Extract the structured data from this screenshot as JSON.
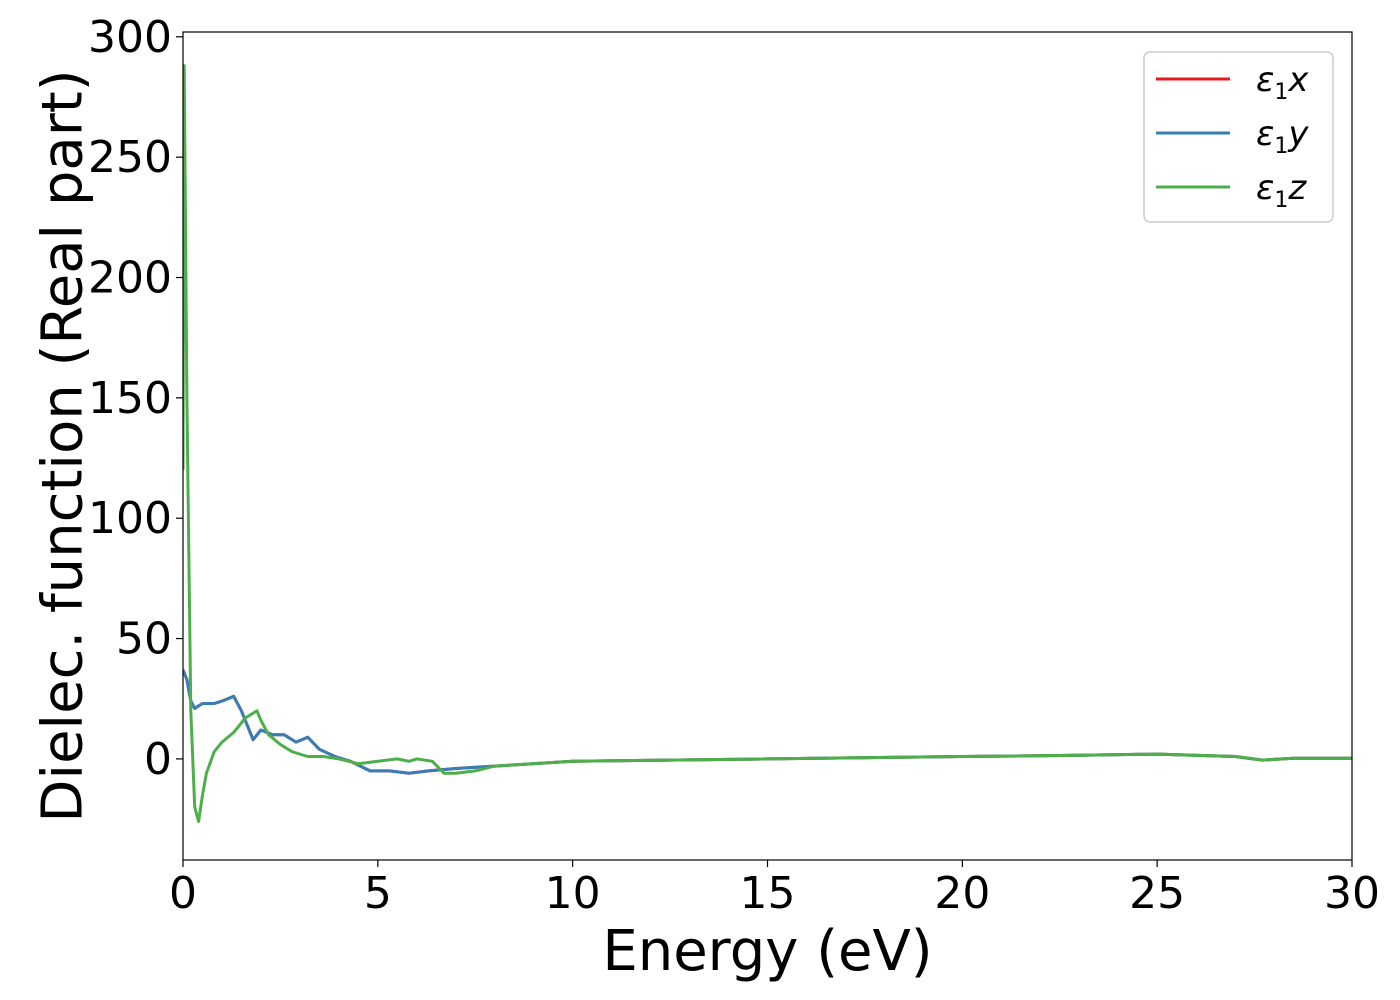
{
  "chart_data": {
    "type": "line",
    "title": "",
    "xlabel": "Energy (eV)",
    "ylabel": "Dielec. function (Real part)",
    "xlim": [
      0,
      30
    ],
    "ylim": [
      -42,
      302
    ],
    "xticks": [
      0,
      5,
      10,
      15,
      20,
      25,
      30
    ],
    "yticks": [
      0,
      50,
      100,
      150,
      200,
      250,
      300
    ],
    "xtick_labels": [
      "0",
      "5",
      "10",
      "15",
      "20",
      "25",
      "30"
    ],
    "ytick_labels": [
      "0",
      "50",
      "100",
      "150",
      "200",
      "250",
      "300"
    ],
    "grid": false,
    "legend_position": "top-right",
    "series": [
      {
        "name": "ε1x",
        "color": "#e41a1c",
        "x": [
          0.0,
          0.1,
          0.2,
          0.3,
          0.5,
          0.8,
          1.0,
          1.3,
          1.5,
          1.8,
          2.0,
          2.3,
          2.6,
          2.9,
          3.2,
          3.5,
          3.9,
          4.3,
          4.8,
          5.3,
          5.8,
          6.3,
          7.0,
          8.0,
          10.0,
          15.0,
          20.0,
          23.0,
          25.0,
          27.0,
          27.7,
          28.5,
          30.0
        ],
        "y": [
          37,
          33,
          24,
          21,
          23,
          23,
          24,
          26,
          20,
          8,
          12,
          10,
          10,
          7,
          9,
          4,
          1,
          -1,
          -5,
          -5,
          -6,
          -5,
          -4,
          -3,
          -1,
          0,
          1,
          1.5,
          2,
          1,
          -0.5,
          0.3,
          0.3
        ]
      },
      {
        "name": "ε1y",
        "color": "#377eb8",
        "x": [
          0.0,
          0.1,
          0.2,
          0.3,
          0.5,
          0.8,
          1.0,
          1.3,
          1.5,
          1.8,
          2.0,
          2.3,
          2.6,
          2.9,
          3.2,
          3.5,
          3.9,
          4.3,
          4.8,
          5.3,
          5.8,
          6.3,
          7.0,
          8.0,
          10.0,
          15.0,
          20.0,
          23.0,
          25.0,
          27.0,
          27.7,
          28.5,
          30.0
        ],
        "y": [
          37,
          33,
          24,
          21,
          23,
          23,
          24,
          26,
          20,
          8,
          12,
          10,
          10,
          7,
          9,
          4,
          1,
          -1,
          -5,
          -5,
          -6,
          -5,
          -4,
          -3,
          -1,
          0,
          1,
          1.5,
          2,
          1,
          -0.5,
          0.3,
          0.3
        ]
      },
      {
        "name": "ε1z",
        "color": "#4daf4a",
        "x": [
          0.0,
          0.03,
          0.1,
          0.2,
          0.3,
          0.4,
          0.5,
          0.6,
          0.8,
          1.0,
          1.3,
          1.6,
          1.9,
          2.0,
          2.2,
          2.5,
          2.8,
          3.2,
          3.6,
          4.0,
          4.5,
          5.0,
          5.5,
          5.8,
          6.0,
          6.4,
          6.7,
          7.0,
          7.5,
          8.0,
          10.0,
          15.0,
          20.0,
          23.0,
          25.0,
          27.0,
          27.7,
          28.5,
          30.0
        ],
        "y": [
          120,
          288,
          150,
          20,
          -20,
          -26,
          -15,
          -6,
          3,
          7,
          11,
          17,
          20,
          16,
          10,
          6,
          3,
          1,
          1,
          0,
          -2,
          -1,
          0,
          -1,
          0,
          -1,
          -6,
          -6,
          -5,
          -3,
          -1,
          0,
          1,
          1.5,
          2,
          1,
          -0.5,
          0.3,
          0.3
        ]
      }
    ]
  }
}
